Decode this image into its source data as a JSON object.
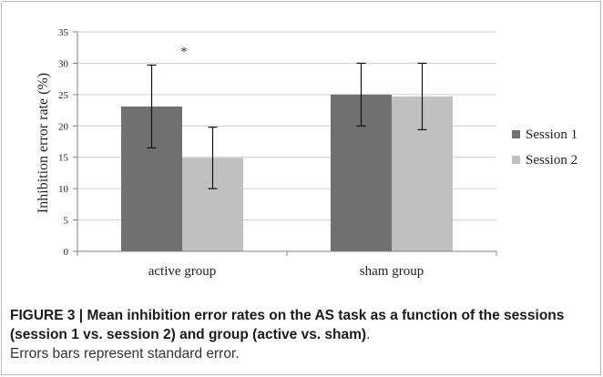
{
  "chart_data": {
    "type": "bar",
    "categories": [
      "active group",
      "sham group"
    ],
    "series": [
      {
        "name": "Session 1",
        "color": "#707070",
        "values": [
          23.1,
          25.0
        ],
        "error": [
          6.6,
          5.0
        ]
      },
      {
        "name": "Session 2",
        "color": "#c0c0c0",
        "values": [
          14.9,
          24.7
        ],
        "error": [
          4.9,
          5.3
        ]
      }
    ],
    "ylabel": "Inhibition error rate (%)",
    "xlabel": "",
    "ylim": [
      0,
      35
    ],
    "yticks": [
      0,
      5,
      10,
      15,
      20,
      25,
      30,
      35
    ],
    "grid": true,
    "legend": "right",
    "annotations": [
      {
        "text": "*",
        "category": "active group"
      }
    ]
  },
  "caption": {
    "label": "FIGURE 3 | ",
    "title": "Mean inhibition error rates on the AS task as a function of the sessions (session 1 vs. session 2) and group (active vs. sham)",
    "title_end": ".",
    "note": "Errors bars represent standard error."
  }
}
